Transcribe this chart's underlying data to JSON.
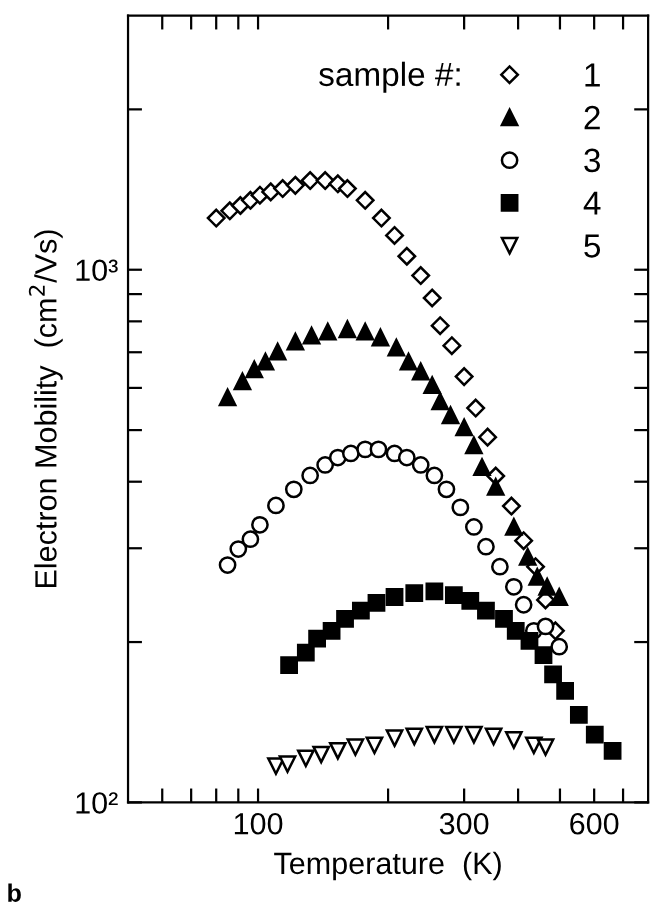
{
  "chart_data": {
    "type": "scatter",
    "xlabel": "Temperature  (K)",
    "ylabel": "Electron Mobility  (cm$^{2}$/Vs)",
    "legend_title": "sample #:",
    "legend": "top right",
    "log": "xy",
    "grid": false,
    "xlim": [
      50,
      800
    ],
    "ylim": [
      100,
      3000
    ],
    "xticks": [
      {
        "value": 60,
        "label": null
      },
      {
        "value": 70,
        "label": null
      },
      {
        "value": 80,
        "label": null
      },
      {
        "value": 90,
        "label": null
      },
      100,
      {
        "value": 200,
        "label": null
      },
      300,
      {
        "value": 400,
        "label": null
      },
      {
        "value": 500,
        "label": null
      },
      600,
      {
        "value": 700,
        "label": null
      }
    ],
    "yticks": [
      {
        "value": 100,
        "label": "10²"
      },
      {
        "value": 200,
        "label": null
      },
      {
        "value": 300,
        "label": null
      },
      {
        "value": 400,
        "label": null
      },
      {
        "value": 500,
        "label": null
      },
      {
        "value": 600,
        "label": null
      },
      {
        "value": 700,
        "label": null
      },
      {
        "value": 800,
        "label": null
      },
      {
        "value": 900,
        "label": null
      },
      {
        "value": 1000,
        "label": "10³"
      },
      {
        "value": 2000,
        "label": null
      }
    ],
    "annotations": [
      "b"
    ],
    "series": [
      {
        "name": "1",
        "color": "#000000",
        "marker": "diamond",
        "x": [
          80,
          86,
          91,
          96,
          101,
          107,
          114,
          122,
          132,
          143,
          153,
          161,
          177,
          193,
          207,
          221,
          238,
          253,
          264,
          281,
          300,
          319,
          340,
          355,
          386,
          412,
          439,
          463,
          488
        ],
        "values": [
          1250,
          1290,
          1320,
          1350,
          1380,
          1400,
          1420,
          1440,
          1470,
          1470,
          1450,
          1420,
          1350,
          1250,
          1160,
          1060,
          975,
          885,
          785,
          720,
          630,
          550,
          485,
          410,
          360,
          310,
          277,
          240,
          210
        ]
      },
      {
        "name": "2",
        "color": "#000000",
        "marker": "triangle",
        "x": [
          85,
          92,
          98,
          104,
          111,
          122,
          133,
          145,
          161,
          177,
          192,
          209,
          223,
          238,
          253,
          264,
          279,
          300,
          316,
          330,
          355,
          391,
          421,
          443,
          467,
          498
        ],
        "values": [
          576,
          617,
          650,
          672,
          702,
          733,
          752,
          765,
          773,
          765,
          746,
          714,
          672,
          644,
          607,
          566,
          533,
          506,
          468,
          426,
          391,
          329,
          289,
          265,
          254,
          243
        ]
      },
      {
        "name": "3",
        "color": "#000000",
        "marker": "circle",
        "x": [
          85,
          90,
          96,
          101,
          110,
          121,
          132,
          143,
          153,
          164,
          177,
          190,
          207,
          221,
          238,
          256,
          273,
          294,
          316,
          337,
          363,
          391,
          412,
          435,
          463,
          498
        ],
        "values": [
          279,
          299,
          312,
          332,
          361,
          387,
          411,
          430,
          444,
          452,
          460,
          460,
          452,
          444,
          430,
          411,
          387,
          358,
          329,
          302,
          277,
          254,
          235,
          210,
          214,
          196
        ]
      },
      {
        "name": "4",
        "color": "#000000",
        "marker": "square",
        "x": [
          118,
          129,
          137,
          148,
          159,
          173,
          188,
          207,
          230,
          256,
          284,
          310,
          337,
          371,
          395,
          425,
          458,
          482,
          514,
          553,
          602,
          662
        ],
        "values": [
          181,
          191,
          203,
          210,
          221,
          229,
          237,
          243,
          247,
          249,
          245,
          239,
          229,
          221,
          210,
          201,
          189,
          174,
          162,
          146,
          134,
          125
        ]
      },
      {
        "name": "5",
        "color": "#000000",
        "marker": "triangle_down",
        "x": [
          110,
          117,
          129,
          140,
          153,
          168,
          186,
          207,
          230,
          256,
          284,
          316,
          351,
          391,
          435,
          463
        ],
        "values": [
          117,
          118,
          121,
          123,
          125,
          127,
          128,
          132,
          133,
          134,
          134,
          134,
          133,
          131,
          128,
          127
        ]
      }
    ]
  }
}
